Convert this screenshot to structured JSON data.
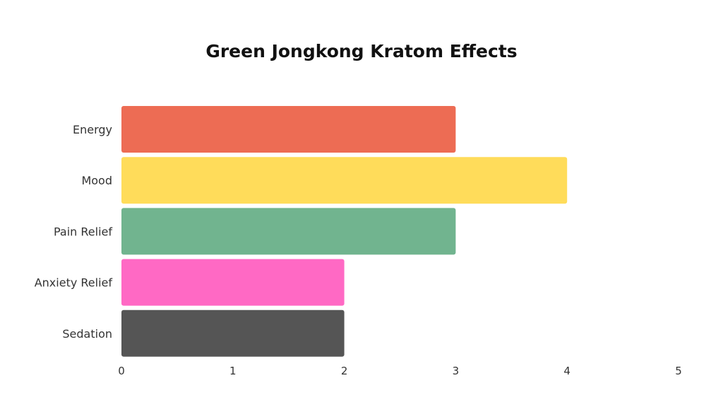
{
  "chart_data": {
    "type": "bar",
    "orientation": "horizontal",
    "title": "Green Jongkong Kratom Effects",
    "xlabel": "",
    "ylabel": "",
    "categories": [
      "Energy",
      "Mood",
      "Pain Relief",
      "Anxiety Relief",
      "Sedation"
    ],
    "values": [
      3,
      4,
      3,
      2,
      2
    ],
    "bar_colors": [
      "#ED6C54",
      "#FFDC5A",
      "#71B48F",
      "#FF69C4",
      "#555555"
    ],
    "xlim": [
      0,
      5
    ],
    "xticks": [
      "0",
      "1",
      "2",
      "3",
      "4",
      "5"
    ],
    "grid": false,
    "legend": "none"
  }
}
